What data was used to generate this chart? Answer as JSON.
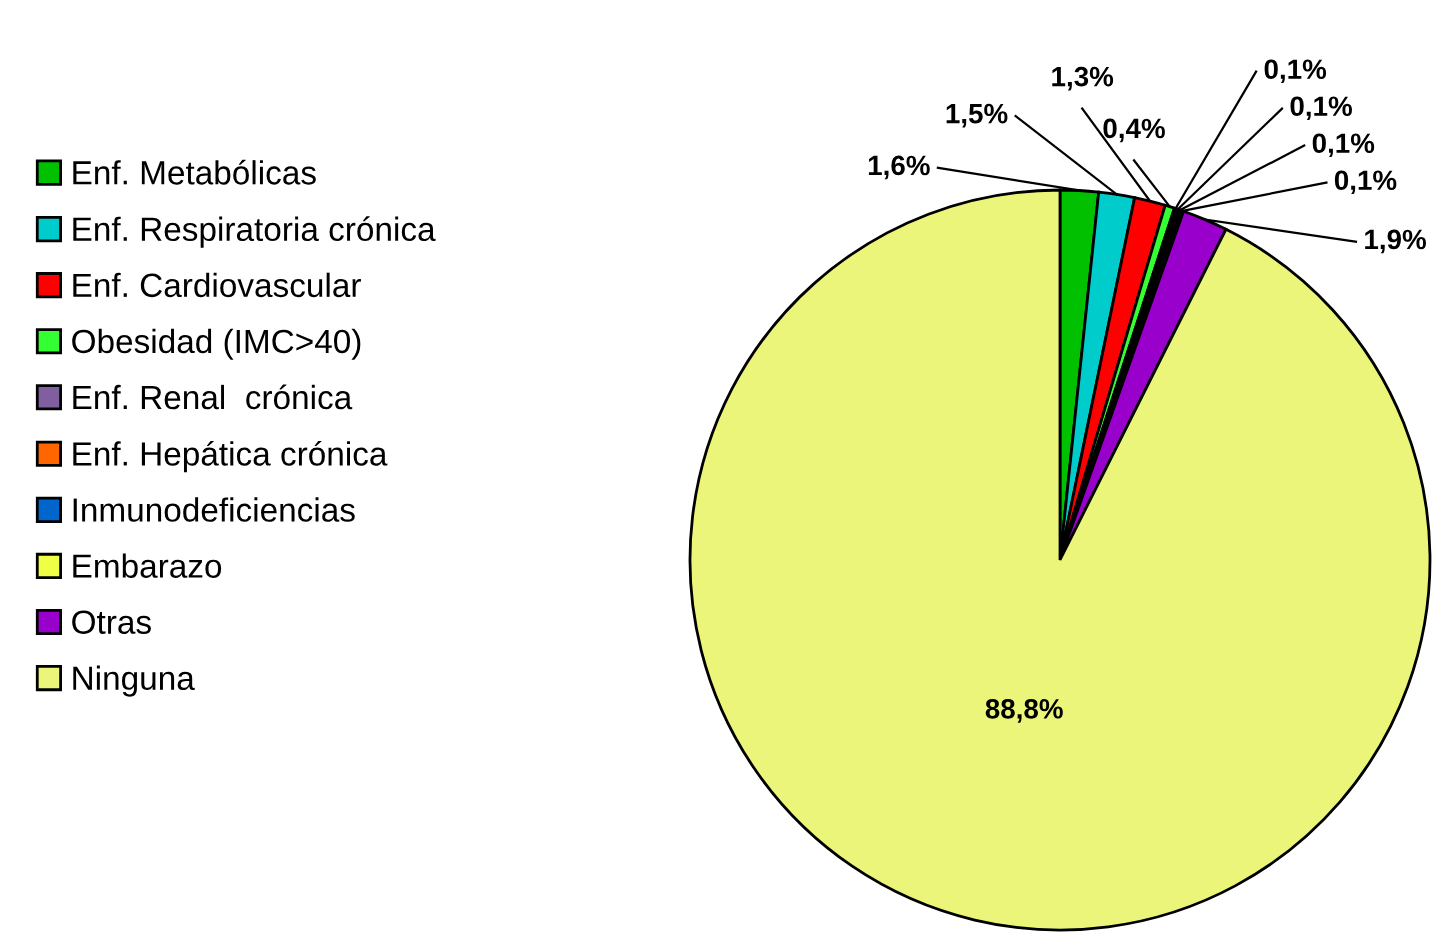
{
  "chart_data": {
    "type": "pie",
    "categories": [
      "Enf. Metabólicas",
      "Enf. Respiratoria crónica",
      "Enf. Cardiovascular",
      "Obesidad (IMC>40)",
      "Enf. Renal  crónica",
      "Enf. Hepática crónica",
      "Inmunodeficiencias",
      "Embarazo",
      "Otras",
      "Ninguna"
    ],
    "values": [
      1.6,
      1.5,
      1.3,
      0.4,
      0.1,
      0.1,
      0.1,
      0.1,
      1.9,
      88.8
    ],
    "value_labels": [
      "1,6%",
      "1,5%",
      "1,3%",
      "0,4%",
      "0,1%",
      "0,1%",
      "0,1%",
      "0,1%",
      "1,9%",
      "88,8%"
    ],
    "colors": [
      "#00c000",
      "#00cccc",
      "#ff0000",
      "#33ff33",
      "#7f5fa0",
      "#ff6600",
      "#0066cc",
      "#eeff44",
      "#9900cc",
      "#eaf57a"
    ],
    "legend": "left"
  }
}
